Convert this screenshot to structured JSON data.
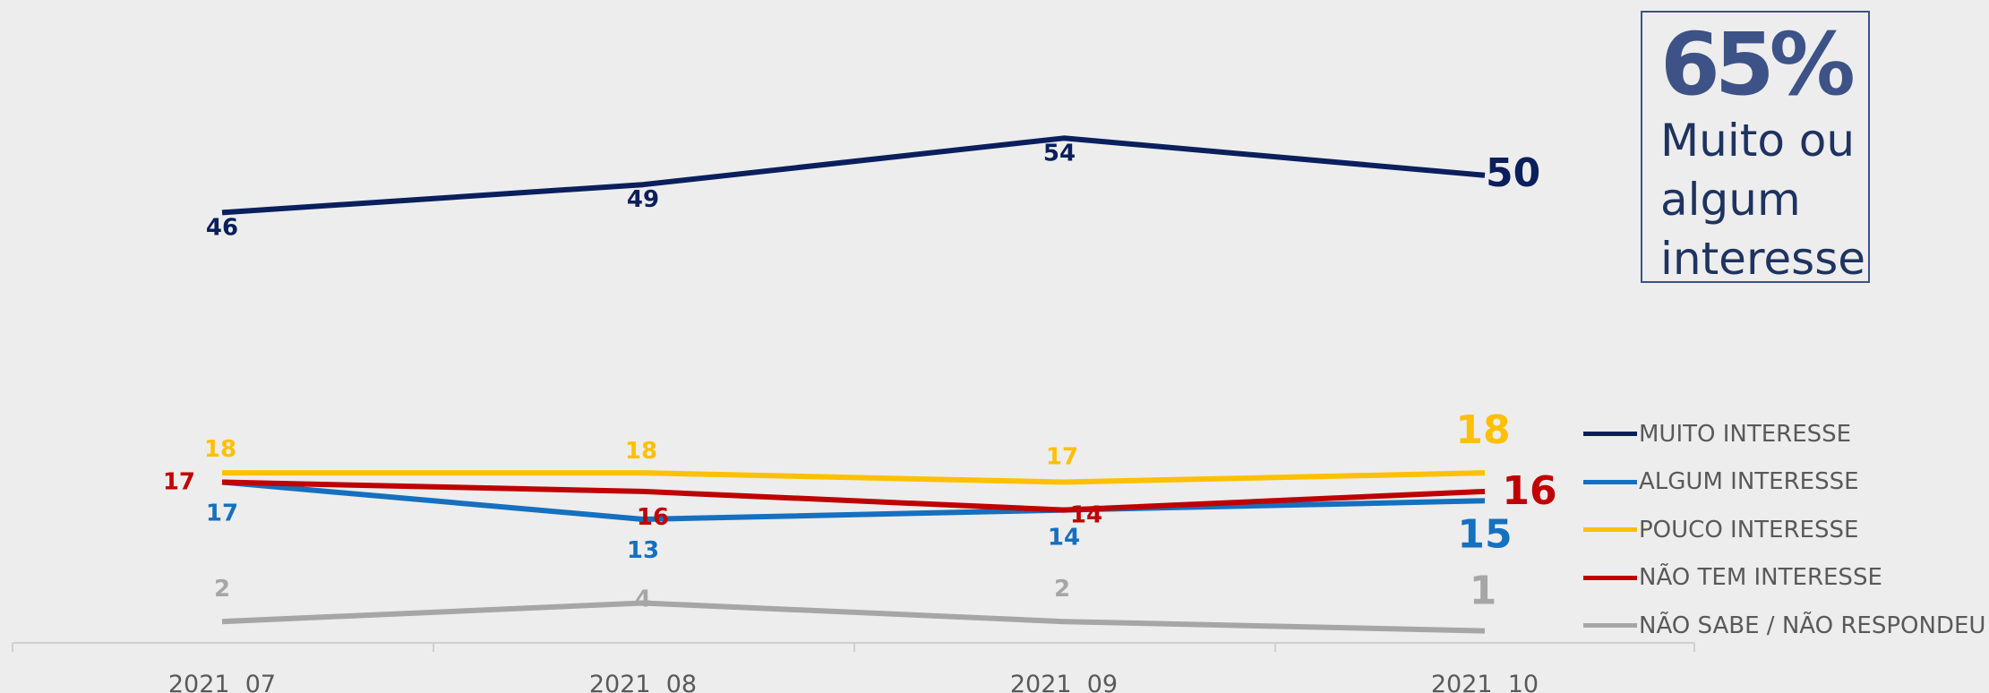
{
  "callout": {
    "value": "65%",
    "text": "Muito ou algum interesse"
  },
  "chart_data": {
    "type": "line",
    "x": [
      "2021  07",
      "2021  08",
      "2021  09",
      "2021  10"
    ],
    "ylim": [
      0,
      60
    ],
    "grid": false,
    "legend_position": "right",
    "series": [
      {
        "name": "MUITO INTERESSE",
        "values": [
          46,
          49,
          54,
          50
        ],
        "color": "#0a1f5c"
      },
      {
        "name": "ALGUM INTERESSE",
        "values": [
          17,
          13,
          14,
          15
        ],
        "color": "#1570c0"
      },
      {
        "name": "POUCO INTERESSE",
        "values": [
          18,
          18,
          17,
          18
        ],
        "color": "#ffc000"
      },
      {
        "name": "NÃO TEM INTERESSE",
        "values": [
          17,
          16,
          14,
          16
        ],
        "color": "#c00000"
      },
      {
        "name": "NÃO SABE / NÃO RESPONDEU",
        "values": [
          2,
          4,
          2,
          1
        ],
        "color": "#a6a6a6"
      }
    ]
  }
}
